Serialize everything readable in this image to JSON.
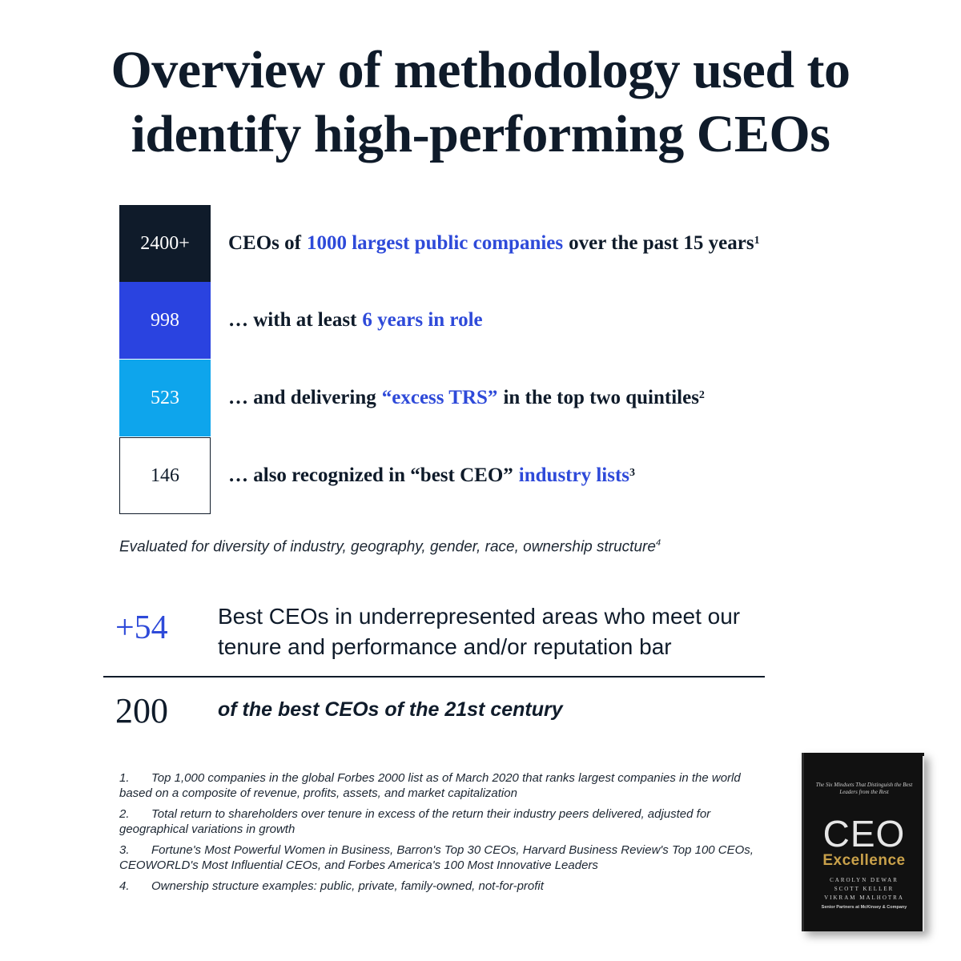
{
  "title": {
    "line1": "Overview of methodology used to",
    "line2": "identify high-performing CEOs"
  },
  "colors": {
    "dark_navy": "#0f1b2a",
    "royal_blue": "#2a43e0",
    "sky_blue": "#0ea5ec",
    "highlight_blue": "#2e4ad9"
  },
  "funnel": [
    {
      "value": "2400+",
      "text_before": "CEOs of",
      "highlight": "1000 largest public companies",
      "text_after": "over the past 15 years",
      "footnote": "1"
    },
    {
      "value": "998",
      "text_before": "… with at least",
      "highlight": "6 years in role",
      "text_after": "",
      "footnote": ""
    },
    {
      "value": "523",
      "text_before": "… and delivering",
      "highlight": "“excess TRS”",
      "text_after": "in the top two quintiles",
      "footnote": "2"
    },
    {
      "value": "146",
      "text_before": "… also recognized in “best CEO”",
      "highlight": "industry lists",
      "text_after": "",
      "footnote": "3"
    }
  ],
  "evaluated": {
    "text": "Evaluated for diversity of industry, geography, gender, race, ownership structure",
    "footnote": "4"
  },
  "addition": {
    "value": "+54",
    "line1": "Best CEOs in underrepresented areas who meet our",
    "line2": "tenure and performance and/or reputation bar"
  },
  "total": {
    "value": "200",
    "text": "of the best CEOs of the 21st century"
  },
  "footnotes": [
    {
      "num": "1.",
      "text": "Top 1,000 companies in the global Forbes 2000 list as of March 2020 that ranks largest companies in the world based on a composite of revenue, profits, assets, and market capitalization"
    },
    {
      "num": "2.",
      "text": "Total return to shareholders over tenure in excess of the return their industry peers delivered, adjusted for geographical variations in growth"
    },
    {
      "num": "3.",
      "text": "Fortune's Most Powerful Women in Business, Barron's Top 30 CEOs, Harvard Business Review's Top 100 CEOs, CEOWORLD's Most Influential CEOs, and Forbes America's 100 Most Innovative Leaders"
    },
    {
      "num": "4.",
      "text": "Ownership structure examples: public, private, family-owned, not-for-profit"
    }
  ],
  "book": {
    "tagline": "The Six Mindsets That Distinguish the Best Leaders from the Rest",
    "title_main": "CEO",
    "title_sub": "Excellence",
    "authors": [
      "CAROLYN DEWAR",
      "SCOTT KELLER",
      "VIKRAM MALHOTRA"
    ],
    "subtitle": "Senior Partners at McKinsey & Company"
  }
}
